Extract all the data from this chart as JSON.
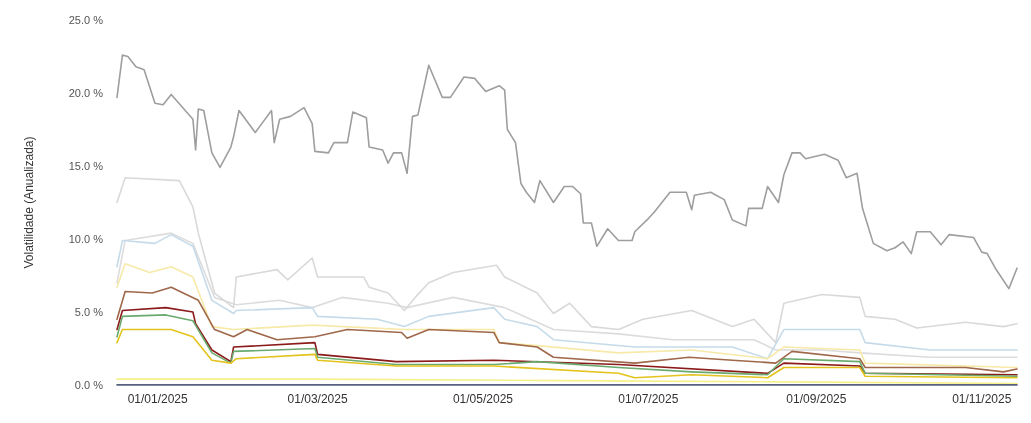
{
  "chart_data": {
    "type": "line",
    "ylabel": "Volatilidade (Anualizada)",
    "marker": "none",
    "line_style": "solid",
    "xticks": [
      {
        "value": "2025-01-01",
        "label": "01/01/2025"
      },
      {
        "value": "2025-03-01",
        "label": "01/03/2025"
      },
      {
        "value": "2025-05-01",
        "label": "01/05/2025"
      },
      {
        "value": "2025-07-01",
        "label": "01/07/2025"
      },
      {
        "value": "2025-09-01",
        "label": "01/09/2025"
      },
      {
        "value": "2025-11-01",
        "label": "01/11/2025"
      }
    ],
    "xlim": [
      "2024-12-17",
      "2025-11-14"
    ],
    "ylim": [
      0,
      25
    ],
    "yticks": [
      {
        "value": 0,
        "label": "0.0 %"
      },
      {
        "value": 5,
        "label": "5.0 %"
      },
      {
        "value": 10,
        "label": "10.0 %"
      },
      {
        "value": 15,
        "label": "15.0 %"
      },
      {
        "value": 20,
        "label": "20.0 %"
      },
      {
        "value": 25,
        "label": "25.0 %"
      }
    ],
    "series": [
      {
        "color": "#dcdcdc",
        "x": [
          "2024-12-17",
          "2024-12-20",
          "2025-01-06",
          "2025-01-14",
          "2025-01-22",
          "2025-01-30",
          "2025-02-15",
          "2025-02-27",
          "2025-03-10",
          "2025-03-27",
          "2025-04-03",
          "2025-04-20",
          "2025-05-09",
          "2025-05-27",
          "2025-06-20",
          "2025-07-10",
          "2025-08-09",
          "2025-08-17",
          "2025-09-03",
          "2025-09-17",
          "2025-10-13",
          "2025-11-14"
        ],
        "values": [
          7.0,
          9.9,
          10.4,
          9.7,
          6.0,
          5.5,
          5.8,
          5.3,
          6.0,
          5.6,
          5.3,
          6.0,
          5.3,
          3.8,
          3.5,
          3.1,
          3.1,
          2.4,
          2.4,
          2.2,
          1.9,
          1.9
        ]
      },
      {
        "color": "#d9d9d9",
        "x": [
          "2024-12-17",
          "2024-12-20",
          "2025-01-09",
          "2025-01-14",
          "2025-01-16",
          "2025-01-22",
          "2025-01-29",
          "2025-01-30",
          "2025-02-14",
          "2025-02-18",
          "2025-02-27",
          "2025-03-01",
          "2025-03-18",
          "2025-03-20",
          "2025-03-27",
          "2025-04-02",
          "2025-04-06",
          "2025-04-11",
          "2025-04-20",
          "2025-05-06",
          "2025-05-09",
          "2025-05-21",
          "2025-05-27",
          "2025-06-02",
          "2025-06-10",
          "2025-06-20",
          "2025-06-29",
          "2025-07-17",
          "2025-08-01",
          "2025-08-09",
          "2025-08-17",
          "2025-08-20",
          "2025-09-03",
          "2025-09-17",
          "2025-09-19",
          "2025-09-30",
          "2025-10-08",
          "2025-10-26",
          "2025-11-09",
          "2025-11-14"
        ],
        "values": [
          12.5,
          14.2,
          14.0,
          12.2,
          10.4,
          6.3,
          5.3,
          7.4,
          7.9,
          7.2,
          8.7,
          7.4,
          7.4,
          6.7,
          6.3,
          5.1,
          6.0,
          7.0,
          7.7,
          8.2,
          7.4,
          6.3,
          4.9,
          5.6,
          4.0,
          3.8,
          4.5,
          5.1,
          4.0,
          4.5,
          2.9,
          5.6,
          6.2,
          6.0,
          4.7,
          4.5,
          3.9,
          4.3,
          4.0,
          4.2
        ]
      },
      {
        "color": "#c6dbe9",
        "x": [
          "2024-12-17",
          "2024-12-19",
          "2024-12-31",
          "2025-01-06",
          "2025-01-14",
          "2025-01-21",
          "2025-01-29",
          "2025-01-30",
          "2025-02-27",
          "2025-03-01",
          "2025-03-23",
          "2025-04-02",
          "2025-04-11",
          "2025-05-05",
          "2025-05-09",
          "2025-05-21",
          "2025-05-27",
          "2025-06-26",
          "2025-08-01",
          "2025-08-14",
          "2025-08-20",
          "2025-09-17",
          "2025-09-19",
          "2025-10-13",
          "2025-11-14"
        ],
        "values": [
          8.1,
          9.9,
          9.7,
          10.3,
          9.5,
          5.8,
          4.9,
          5.1,
          5.3,
          4.7,
          4.5,
          4.0,
          4.7,
          5.3,
          4.5,
          4.0,
          3.1,
          2.6,
          2.6,
          1.8,
          3.8,
          3.8,
          2.9,
          2.4,
          2.4
        ]
      },
      {
        "color": "#f7e9a8",
        "x": [
          "2024-12-17",
          "2024-12-20",
          "2024-12-29",
          "2025-01-06",
          "2025-01-14",
          "2025-01-21",
          "2025-01-29",
          "2025-02-27",
          "2025-04-02",
          "2025-05-05",
          "2025-05-07",
          "2025-05-21",
          "2025-06-20",
          "2025-07-17",
          "2025-08-14",
          "2025-08-20",
          "2025-09-17",
          "2025-09-19",
          "2025-11-14"
        ],
        "values": [
          6.7,
          8.3,
          7.7,
          8.1,
          7.4,
          4.0,
          3.8,
          4.1,
          3.8,
          3.8,
          2.9,
          2.7,
          2.2,
          2.4,
          1.8,
          2.6,
          2.4,
          1.5,
          1.2
        ]
      },
      {
        "color": "#a0684a",
        "x": [
          "2024-12-17",
          "2024-12-20",
          "2024-12-30",
          "2025-01-06",
          "2025-01-16",
          "2025-01-22",
          "2025-01-29",
          "2025-02-03",
          "2025-02-14",
          "2025-02-28",
          "2025-03-12",
          "2025-04-01",
          "2025-04-03",
          "2025-04-11",
          "2025-05-05",
          "2025-05-07",
          "2025-05-21",
          "2025-05-27",
          "2025-06-26",
          "2025-07-16",
          "2025-08-01",
          "2025-08-17",
          "2025-08-23",
          "2025-09-17",
          "2025-09-19",
          "2025-10-26",
          "2025-11-09",
          "2025-11-14"
        ],
        "values": [
          4.5,
          6.4,
          6.3,
          6.7,
          5.8,
          3.8,
          3.3,
          3.8,
          3.1,
          3.3,
          3.8,
          3.6,
          3.2,
          3.8,
          3.6,
          2.9,
          2.6,
          1.9,
          1.5,
          1.9,
          1.7,
          1.5,
          2.3,
          1.8,
          1.2,
          1.2,
          0.9,
          1.1
        ]
      },
      {
        "color": "#8b1a1a",
        "x": [
          "2024-12-17",
          "2024-12-19",
          "2025-01-04",
          "2025-01-14",
          "2025-01-15",
          "2025-01-21",
          "2025-01-28",
          "2025-01-29",
          "2025-02-28",
          "2025-03-01",
          "2025-03-30",
          "2025-05-05",
          "2025-06-20",
          "2025-08-14",
          "2025-08-20",
          "2025-09-17",
          "2025-09-19",
          "2025-11-14"
        ],
        "values": [
          3.8,
          5.1,
          5.3,
          5.0,
          4.2,
          2.4,
          1.6,
          2.6,
          2.9,
          2.1,
          1.6,
          1.7,
          1.4,
          0.8,
          1.5,
          1.3,
          0.8,
          0.7
        ]
      },
      {
        "color": "#6aaa6e",
        "x": [
          "2024-12-17",
          "2024-12-19",
          "2025-01-04",
          "2025-01-14",
          "2025-01-21",
          "2025-01-28",
          "2025-01-29",
          "2025-02-28",
          "2025-03-01",
          "2025-03-30",
          "2025-05-05",
          "2025-05-21",
          "2025-06-20",
          "2025-07-17",
          "2025-08-14",
          "2025-08-20",
          "2025-09-17",
          "2025-09-19",
          "2025-11-14"
        ],
        "values": [
          3.3,
          4.7,
          4.8,
          4.4,
          2.2,
          1.5,
          2.3,
          2.5,
          1.9,
          1.4,
          1.4,
          1.6,
          1.2,
          0.9,
          0.7,
          1.8,
          1.6,
          0.8,
          0.6
        ]
      },
      {
        "color": "#e3c31c",
        "x": [
          "2024-12-17",
          "2024-12-19",
          "2025-01-06",
          "2025-01-14",
          "2025-01-21",
          "2025-01-28",
          "2025-01-30",
          "2025-02-28",
          "2025-03-01",
          "2025-03-30",
          "2025-05-05",
          "2025-06-20",
          "2025-06-26",
          "2025-07-17",
          "2025-08-14",
          "2025-08-20",
          "2025-09-17",
          "2025-09-19",
          "2025-11-14"
        ],
        "values": [
          2.9,
          3.8,
          3.8,
          3.3,
          1.7,
          1.5,
          1.8,
          2.1,
          1.7,
          1.3,
          1.3,
          0.8,
          0.5,
          0.7,
          0.5,
          1.2,
          1.2,
          0.6,
          0.5
        ]
      },
      {
        "color": "#f5f08a",
        "x": [
          "2024-12-17",
          "2025-03-01",
          "2025-06-01",
          "2025-09-01",
          "2025-11-14"
        ],
        "values": [
          0.4,
          0.4,
          0.3,
          0.2,
          0.1
        ]
      },
      {
        "color": "#1f2d5a",
        "x": [
          "2024-12-17",
          "2025-11-14"
        ],
        "values": [
          0.0,
          0.0
        ]
      },
      {
        "color": "#9e9e9e",
        "x": [
          "2024-12-17",
          "2024-12-19",
          "2024-12-21",
          "2024-12-24",
          "2024-12-27",
          "2024-12-31",
          "2025-01-03",
          "2025-01-06",
          "2025-01-14",
          "2025-01-15",
          "2025-01-16",
          "2025-01-18",
          "2025-01-21",
          "2025-01-24",
          "2025-01-28",
          "2025-01-29",
          "2025-01-31",
          "2025-02-06",
          "2025-02-08",
          "2025-02-12",
          "2025-02-13",
          "2025-02-15",
          "2025-02-19",
          "2025-02-24",
          "2025-02-27",
          "2025-02-28",
          "2025-03-05",
          "2025-03-07",
          "2025-03-12",
          "2025-03-14",
          "2025-03-19",
          "2025-03-20",
          "2025-03-25",
          "2025-03-27",
          "2025-03-29",
          "2025-04-01",
          "2025-04-03",
          "2025-04-05",
          "2025-04-07",
          "2025-04-11",
          "2025-04-16",
          "2025-04-19",
          "2025-04-24",
          "2025-04-28",
          "2025-05-02",
          "2025-05-07",
          "2025-05-09",
          "2025-05-10",
          "2025-05-13",
          "2025-05-15",
          "2025-05-17",
          "2025-05-20",
          "2025-05-22",
          "2025-05-27",
          "2025-05-31",
          "2025-06-03",
          "2025-06-06",
          "2025-06-07",
          "2025-06-10",
          "2025-06-12",
          "2025-06-16",
          "2025-06-20",
          "2025-06-25",
          "2025-06-26",
          "2025-07-01",
          "2025-07-03",
          "2025-07-09",
          "2025-07-15",
          "2025-07-17",
          "2025-07-18",
          "2025-07-24",
          "2025-07-29",
          "2025-08-01",
          "2025-08-06",
          "2025-08-07",
          "2025-08-12",
          "2025-08-14",
          "2025-08-18",
          "2025-08-20",
          "2025-08-23",
          "2025-08-26",
          "2025-08-28",
          "2025-09-04",
          "2025-09-09",
          "2025-09-12",
          "2025-09-16",
          "2025-09-18",
          "2025-09-22",
          "2025-09-27",
          "2025-09-30",
          "2025-10-03",
          "2025-10-06",
          "2025-10-08",
          "2025-10-13",
          "2025-10-17",
          "2025-10-20",
          "2025-10-29",
          "2025-11-01",
          "2025-11-03",
          "2025-11-06",
          "2025-11-11",
          "2025-11-14"
        ],
        "values": [
          19.7,
          22.6,
          22.5,
          21.8,
          21.6,
          19.3,
          19.2,
          19.9,
          18.2,
          16.1,
          18.9,
          18.8,
          15.9,
          14.9,
          16.3,
          17.0,
          18.8,
          17.3,
          17.8,
          18.8,
          16.6,
          18.2,
          18.4,
          19.0,
          17.9,
          16.0,
          15.9,
          16.6,
          16.6,
          18.7,
          18.3,
          16.3,
          16.1,
          15.2,
          15.9,
          15.9,
          14.5,
          18.4,
          18.5,
          21.9,
          19.7,
          19.7,
          21.1,
          21.0,
          20.1,
          20.5,
          20.2,
          17.5,
          16.6,
          13.8,
          13.2,
          12.5,
          14.0,
          12.5,
          13.6,
          13.6,
          13.1,
          11.1,
          11.1,
          9.5,
          10.7,
          9.9,
          9.9,
          10.5,
          11.4,
          11.8,
          13.2,
          13.2,
          12.0,
          13.0,
          13.2,
          12.7,
          11.3,
          10.9,
          12.1,
          12.1,
          13.6,
          12.5,
          14.4,
          15.9,
          15.9,
          15.5,
          15.8,
          15.4,
          14.2,
          14.5,
          12.1,
          9.7,
          9.2,
          9.4,
          9.8,
          9.0,
          10.5,
          10.5,
          9.6,
          10.3,
          10.1,
          9.1,
          9.0,
          8.0,
          6.6,
          8.0
        ]
      }
    ]
  }
}
